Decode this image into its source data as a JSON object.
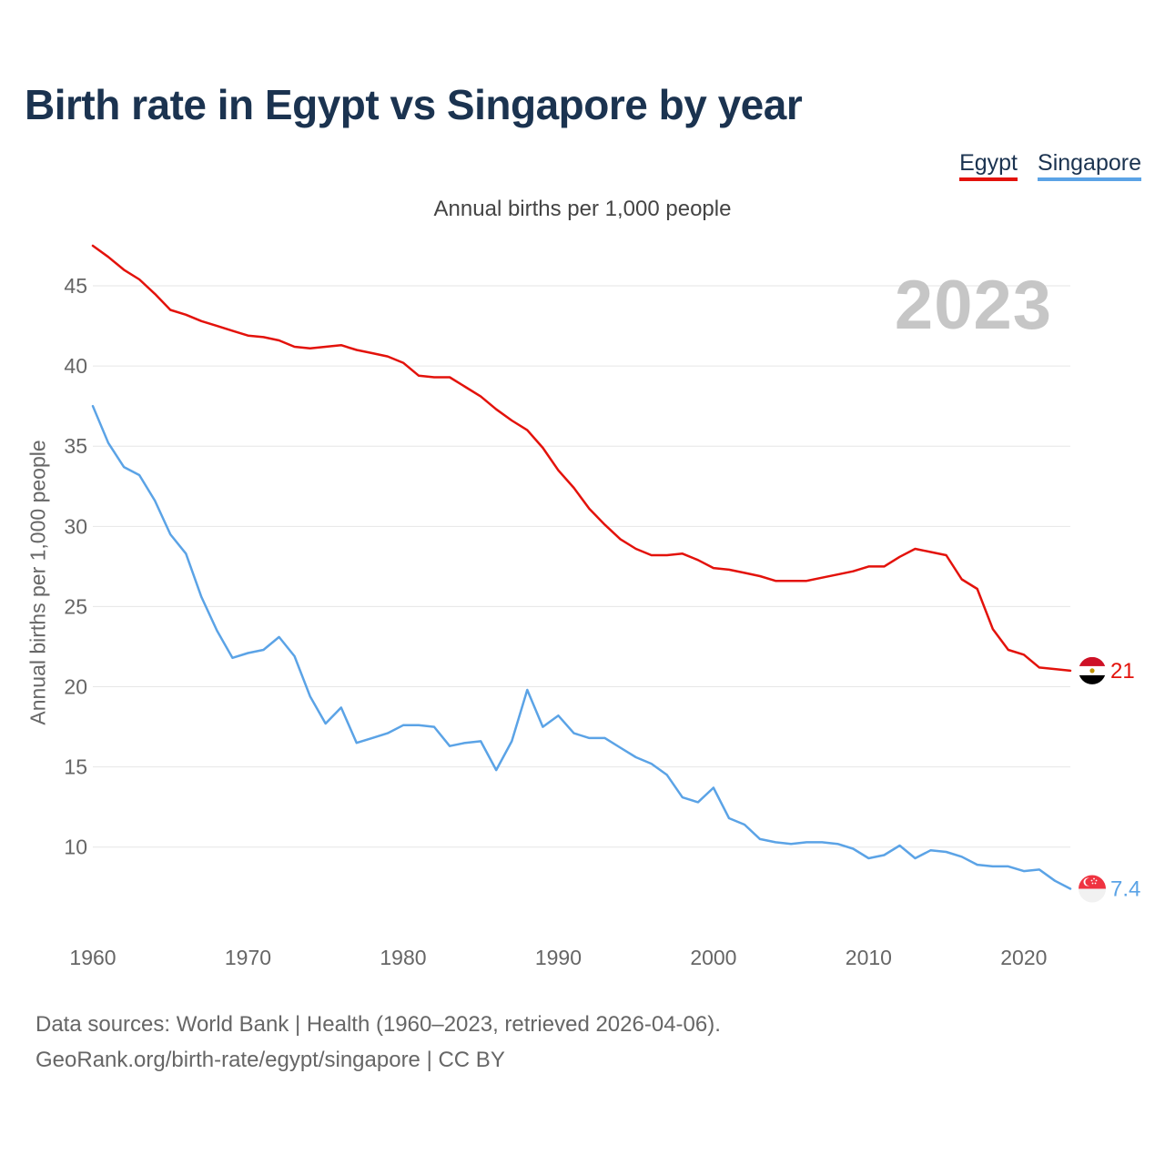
{
  "chart_data": {
    "type": "line",
    "title": "Birth rate in Egypt vs Singapore by year",
    "subtitle": "Annual births per 1,000 people",
    "ylabel": "Annual births per 1,000 people",
    "xlabel": "",
    "current_year": "2023",
    "ylim": [
      5.5,
      47.5
    ],
    "xlim": [
      1960,
      2023
    ],
    "yticks": [
      10,
      15,
      20,
      25,
      30,
      35,
      40,
      45
    ],
    "xticks": [
      1960,
      1970,
      1980,
      1990,
      2000,
      2010,
      2020
    ],
    "grid": true,
    "legend_position": "top-right",
    "x": [
      1960,
      1961,
      1962,
      1963,
      1964,
      1965,
      1966,
      1967,
      1968,
      1969,
      1970,
      1971,
      1972,
      1973,
      1974,
      1975,
      1976,
      1977,
      1978,
      1979,
      1980,
      1981,
      1982,
      1983,
      1984,
      1985,
      1986,
      1987,
      1988,
      1989,
      1990,
      1991,
      1992,
      1993,
      1994,
      1995,
      1996,
      1997,
      1998,
      1999,
      2000,
      2001,
      2002,
      2003,
      2004,
      2005,
      2006,
      2007,
      2008,
      2009,
      2010,
      2011,
      2012,
      2013,
      2014,
      2015,
      2016,
      2017,
      2018,
      2019,
      2020,
      2021,
      2022,
      2023
    ],
    "series": [
      {
        "name": "Egypt",
        "color": "#e3120b",
        "end_label": "21",
        "values": [
          47.5,
          46.8,
          46.0,
          45.4,
          44.5,
          43.5,
          43.2,
          42.8,
          42.5,
          42.2,
          41.9,
          41.8,
          41.6,
          41.2,
          41.1,
          41.2,
          41.3,
          41.0,
          40.8,
          40.6,
          40.2,
          39.4,
          39.3,
          39.3,
          38.7,
          38.1,
          37.3,
          36.6,
          36.0,
          34.9,
          33.5,
          32.4,
          31.1,
          30.1,
          29.2,
          28.6,
          28.2,
          28.2,
          28.3,
          27.9,
          27.4,
          27.3,
          27.1,
          26.9,
          26.6,
          26.6,
          26.6,
          26.8,
          27.0,
          27.2,
          27.5,
          27.5,
          28.1,
          28.6,
          28.4,
          28.2,
          26.7,
          26.1,
          23.6,
          22.3,
          22.0,
          21.2,
          21.1,
          21.0
        ]
      },
      {
        "name": "Singapore",
        "color": "#5ba3e6",
        "end_label": "7.4",
        "values": [
          37.5,
          35.2,
          33.7,
          33.2,
          31.6,
          29.5,
          28.3,
          25.6,
          23.5,
          21.8,
          22.1,
          22.3,
          23.1,
          21.9,
          19.4,
          17.7,
          18.7,
          16.5,
          16.8,
          17.1,
          17.6,
          17.6,
          17.5,
          16.3,
          16.5,
          16.6,
          14.8,
          16.6,
          19.8,
          17.5,
          18.2,
          17.1,
          16.8,
          16.8,
          16.2,
          15.6,
          15.2,
          14.5,
          13.1,
          12.8,
          13.7,
          11.8,
          11.4,
          10.5,
          10.3,
          10.2,
          10.3,
          10.3,
          10.2,
          9.9,
          9.3,
          9.5,
          10.1,
          9.3,
          9.8,
          9.7,
          9.4,
          8.9,
          8.8,
          8.8,
          8.5,
          8.6,
          7.9,
          7.4
        ]
      }
    ]
  },
  "source": {
    "line1": "Data sources: World Bank | Health (1960–2023, retrieved 2026-04-06).",
    "line2": "GeoRank.org/birth-rate/egypt/singapore | CC BY"
  }
}
